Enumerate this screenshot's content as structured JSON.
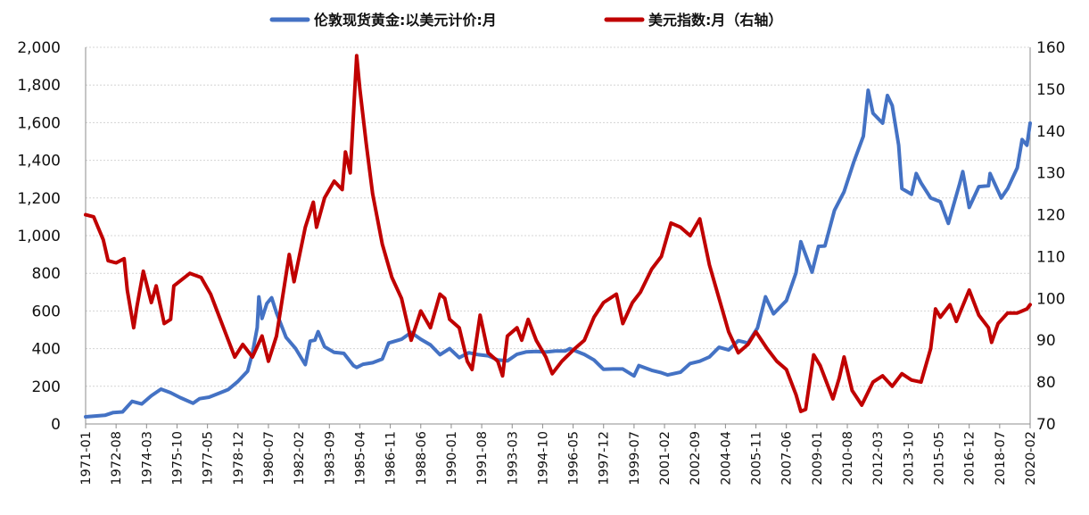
{
  "chart_data": {
    "type": "line",
    "title": "",
    "legend": {
      "placement": "top-center"
    },
    "grid": true,
    "x_axis": {
      "ticks": [
        "1971-01",
        "1972-08",
        "1974-03",
        "1975-10",
        "1977-05",
        "1978-12",
        "1980-07",
        "1982-02",
        "1983-09",
        "1985-04",
        "1986-11",
        "1988-06",
        "1990-01",
        "1991-08",
        "1993-03",
        "1994-10",
        "1996-05",
        "1997-12",
        "1999-07",
        "2001-02",
        "2002-09",
        "2004-04",
        "2005-11",
        "2007-06",
        "2009-01",
        "2010-08",
        "2012-03",
        "2013-10",
        "2015-05",
        "2016-12",
        "2018-07",
        "2020-02"
      ],
      "range": [
        "1971-01",
        "2020-02"
      ]
    },
    "y_left": {
      "range": [
        0,
        2000
      ],
      "ticks": [
        0,
        200,
        400,
        600,
        800,
        1000,
        1200,
        1400,
        1600,
        1800,
        2000
      ],
      "tick_labels": [
        "0",
        "200",
        "400",
        "600",
        "800",
        "1,000",
        "1,200",
        "1,400",
        "1,600",
        "1,800",
        "2,000"
      ]
    },
    "y_right": {
      "range": [
        70,
        160
      ],
      "ticks": [
        70,
        80,
        90,
        100,
        110,
        120,
        130,
        140,
        150,
        160
      ],
      "tick_labels": [
        "70",
        "80",
        "90",
        "100",
        "110",
        "120",
        "130",
        "140",
        "150",
        "160"
      ]
    },
    "series": [
      {
        "name": "伦敦现货黄金:以美元计价:月",
        "axis": "left",
        "color": "#4472C4",
        "points": [
          [
            "1971-01",
            38
          ],
          [
            "1972-01",
            46
          ],
          [
            "1972-06",
            60
          ],
          [
            "1972-12",
            64
          ],
          [
            "1973-06",
            120
          ],
          [
            "1973-12",
            106
          ],
          [
            "1974-06",
            150
          ],
          [
            "1974-12",
            185
          ],
          [
            "1975-06",
            166
          ],
          [
            "1975-12",
            140
          ],
          [
            "1976-08",
            110
          ],
          [
            "1976-12",
            134
          ],
          [
            "1977-06",
            142
          ],
          [
            "1977-12",
            162
          ],
          [
            "1978-06",
            183
          ],
          [
            "1978-12",
            226
          ],
          [
            "1979-06",
            280
          ],
          [
            "1979-09",
            375
          ],
          [
            "1979-12",
            512
          ],
          [
            "1980-01",
            675
          ],
          [
            "1980-03",
            560
          ],
          [
            "1980-06",
            640
          ],
          [
            "1980-09",
            670
          ],
          [
            "1980-12",
            590
          ],
          [
            "1981-06",
            460
          ],
          [
            "1981-12",
            400
          ],
          [
            "1982-06",
            315
          ],
          [
            "1982-09",
            440
          ],
          [
            "1982-12",
            445
          ],
          [
            "1983-02",
            490
          ],
          [
            "1983-06",
            410
          ],
          [
            "1983-12",
            380
          ],
          [
            "1984-06",
            375
          ],
          [
            "1984-12",
            310
          ],
          [
            "1985-02",
            300
          ],
          [
            "1985-06",
            317
          ],
          [
            "1985-12",
            325
          ],
          [
            "1986-06",
            345
          ],
          [
            "1986-10",
            430
          ],
          [
            "1987-06",
            450
          ],
          [
            "1987-12",
            486
          ],
          [
            "1988-06",
            450
          ],
          [
            "1988-12",
            420
          ],
          [
            "1989-06",
            368
          ],
          [
            "1989-12",
            400
          ],
          [
            "1990-06",
            352
          ],
          [
            "1990-12",
            378
          ],
          [
            "1991-06",
            368
          ],
          [
            "1991-12",
            362
          ],
          [
            "1992-06",
            340
          ],
          [
            "1992-12",
            335
          ],
          [
            "1993-06",
            370
          ],
          [
            "1993-12",
            383
          ],
          [
            "1994-06",
            385
          ],
          [
            "1994-12",
            382
          ],
          [
            "1995-06",
            387
          ],
          [
            "1995-12",
            387
          ],
          [
            "1996-03",
            400
          ],
          [
            "1996-12",
            369
          ],
          [
            "1997-06",
            340
          ],
          [
            "1997-12",
            290
          ],
          [
            "1998-06",
            292
          ],
          [
            "1998-12",
            292
          ],
          [
            "1999-07",
            255
          ],
          [
            "1999-10",
            310
          ],
          [
            "2000-06",
            285
          ],
          [
            "2000-12",
            272
          ],
          [
            "2001-04",
            260
          ],
          [
            "2001-12",
            275
          ],
          [
            "2002-06",
            321
          ],
          [
            "2002-12",
            333
          ],
          [
            "2003-06",
            356
          ],
          [
            "2003-12",
            407
          ],
          [
            "2004-06",
            393
          ],
          [
            "2004-12",
            442
          ],
          [
            "2005-06",
            430
          ],
          [
            "2005-12",
            510
          ],
          [
            "2006-05",
            675
          ],
          [
            "2006-10",
            585
          ],
          [
            "2007-06",
            655
          ],
          [
            "2007-12",
            803
          ],
          [
            "2008-03",
            968
          ],
          [
            "2008-10",
            806
          ],
          [
            "2009-02",
            943
          ],
          [
            "2009-06",
            945
          ],
          [
            "2009-12",
            1134
          ],
          [
            "2010-06",
            1233
          ],
          [
            "2010-12",
            1390
          ],
          [
            "2011-06",
            1528
          ],
          [
            "2011-09",
            1772
          ],
          [
            "2011-12",
            1650
          ],
          [
            "2012-06",
            1597
          ],
          [
            "2012-09",
            1744
          ],
          [
            "2012-12",
            1690
          ],
          [
            "2013-04",
            1480
          ],
          [
            "2013-06",
            1250
          ],
          [
            "2013-12",
            1220
          ],
          [
            "2014-03",
            1330
          ],
          [
            "2014-06",
            1280
          ],
          [
            "2014-12",
            1200
          ],
          [
            "2015-06",
            1180
          ],
          [
            "2015-11",
            1065
          ],
          [
            "2016-06",
            1275
          ],
          [
            "2016-08",
            1340
          ],
          [
            "2016-12",
            1150
          ],
          [
            "2017-06",
            1260
          ],
          [
            "2017-12",
            1265
          ],
          [
            "2018-01",
            1330
          ],
          [
            "2018-08",
            1200
          ],
          [
            "2018-12",
            1250
          ],
          [
            "2019-06",
            1360
          ],
          [
            "2019-09",
            1510
          ],
          [
            "2019-12",
            1480
          ],
          [
            "2020-02",
            1597
          ]
        ]
      },
      {
        "name": "美元指数:月（右轴）",
        "axis": "right",
        "color": "#C00000",
        "points": [
          [
            "1971-01",
            120
          ],
          [
            "1971-06",
            119.5
          ],
          [
            "1971-12",
            114
          ],
          [
            "1972-03",
            109
          ],
          [
            "1972-08",
            108.5
          ],
          [
            "1973-01",
            109.5
          ],
          [
            "1973-03",
            102
          ],
          [
            "1973-07",
            93
          ],
          [
            "1973-09",
            98
          ],
          [
            "1974-01",
            106.5
          ],
          [
            "1974-06",
            99
          ],
          [
            "1974-09",
            103
          ],
          [
            "1975-02",
            94
          ],
          [
            "1975-06",
            95
          ],
          [
            "1975-08",
            103
          ],
          [
            "1976-06",
            106
          ],
          [
            "1977-01",
            105
          ],
          [
            "1977-07",
            101
          ],
          [
            "1977-12",
            96
          ],
          [
            "1978-03",
            93
          ],
          [
            "1978-10",
            86
          ],
          [
            "1979-03",
            89
          ],
          [
            "1979-09",
            86
          ],
          [
            "1980-03",
            91
          ],
          [
            "1980-07",
            85
          ],
          [
            "1980-12",
            91
          ],
          [
            "1981-08",
            110.5
          ],
          [
            "1981-11",
            104
          ],
          [
            "1982-06",
            117
          ],
          [
            "1982-11",
            123
          ],
          [
            "1983-01",
            117
          ],
          [
            "1983-06",
            124
          ],
          [
            "1983-12",
            128
          ],
          [
            "1984-05",
            126
          ],
          [
            "1984-07",
            135
          ],
          [
            "1984-10",
            130
          ],
          [
            "1985-02",
            158
          ],
          [
            "1985-04",
            150
          ],
          [
            "1985-08",
            137
          ],
          [
            "1985-12",
            125
          ],
          [
            "1986-06",
            113
          ],
          [
            "1986-12",
            105
          ],
          [
            "1987-06",
            100
          ],
          [
            "1987-12",
            90
          ],
          [
            "1988-06",
            97
          ],
          [
            "1988-12",
            93
          ],
          [
            "1989-06",
            101
          ],
          [
            "1989-09",
            100
          ],
          [
            "1989-12",
            95
          ],
          [
            "1990-06",
            93
          ],
          [
            "1990-11",
            85
          ],
          [
            "1991-02",
            83
          ],
          [
            "1991-07",
            96
          ],
          [
            "1991-12",
            87
          ],
          [
            "1992-06",
            85
          ],
          [
            "1992-09",
            81.5
          ],
          [
            "1992-12",
            91
          ],
          [
            "1993-06",
            93
          ],
          [
            "1993-09",
            90
          ],
          [
            "1994-01",
            95
          ],
          [
            "1994-06",
            90
          ],
          [
            "1994-12",
            86
          ],
          [
            "1995-04",
            82
          ],
          [
            "1995-10",
            85
          ],
          [
            "1996-06",
            88
          ],
          [
            "1996-12",
            90
          ],
          [
            "1997-06",
            95.5
          ],
          [
            "1997-12",
            99
          ],
          [
            "1998-08",
            101
          ],
          [
            "1998-12",
            94
          ],
          [
            "1999-06",
            99
          ],
          [
            "1999-11",
            101.5
          ],
          [
            "2000-06",
            107
          ],
          [
            "2000-12",
            110
          ],
          [
            "2001-06",
            118
          ],
          [
            "2001-12",
            117
          ],
          [
            "2002-06",
            115
          ],
          [
            "2002-12",
            119
          ],
          [
            "2003-06",
            108
          ],
          [
            "2003-12",
            100
          ],
          [
            "2004-06",
            92
          ],
          [
            "2004-12",
            87
          ],
          [
            "2005-06",
            89
          ],
          [
            "2005-11",
            92
          ],
          [
            "2006-06",
            88
          ],
          [
            "2006-12",
            85
          ],
          [
            "2007-06",
            83
          ],
          [
            "2007-12",
            77
          ],
          [
            "2008-03",
            73
          ],
          [
            "2008-06",
            73.5
          ],
          [
            "2008-11",
            86.5
          ],
          [
            "2009-03",
            84
          ],
          [
            "2009-11",
            76
          ],
          [
            "2010-03",
            81
          ],
          [
            "2010-06",
            86
          ],
          [
            "2010-11",
            78
          ],
          [
            "2011-05",
            74.5
          ],
          [
            "2011-12",
            80
          ],
          [
            "2012-06",
            81.5
          ],
          [
            "2012-12",
            79
          ],
          [
            "2013-06",
            82
          ],
          [
            "2013-12",
            80.5
          ],
          [
            "2014-06",
            80
          ],
          [
            "2014-12",
            88
          ],
          [
            "2015-03",
            97.5
          ],
          [
            "2015-06",
            95.5
          ],
          [
            "2015-12",
            98.5
          ],
          [
            "2016-04",
            94.5
          ],
          [
            "2016-12",
            102
          ],
          [
            "2017-06",
            96
          ],
          [
            "2017-12",
            93
          ],
          [
            "2018-02",
            89.5
          ],
          [
            "2018-06",
            94
          ],
          [
            "2018-12",
            96.5
          ],
          [
            "2019-06",
            96.5
          ],
          [
            "2019-12",
            97.5
          ],
          [
            "2020-02",
            98.5
          ]
        ]
      }
    ]
  }
}
